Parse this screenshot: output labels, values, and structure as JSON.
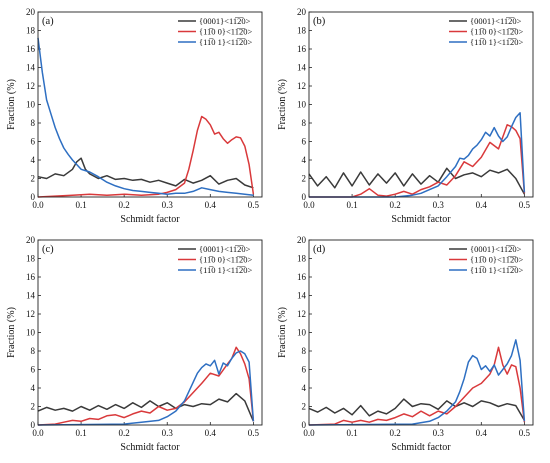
{
  "chart_data": [
    {
      "type": "line",
      "panel_label": "(a)",
      "xlabel": "Schmidt factor",
      "ylabel": "Fraction (%)",
      "xlim": [
        0,
        0.52
      ],
      "ylim": [
        0,
        20
      ],
      "xticks": [
        "0.0",
        "0.1",
        "0.2",
        "0.3",
        "0.4",
        "0.5"
      ],
      "yticks": [
        "0",
        "2",
        "4",
        "6",
        "8",
        "10",
        "12",
        "14",
        "16",
        "18",
        "20"
      ],
      "legend_position": "top-right",
      "series": [
        {
          "name": "{0001}<11̅2̅0>",
          "color": "#3a3a3a",
          "x": [
            0,
            0.02,
            0.04,
            0.06,
            0.08,
            0.09,
            0.1,
            0.11,
            0.12,
            0.14,
            0.16,
            0.18,
            0.2,
            0.22,
            0.24,
            0.26,
            0.28,
            0.3,
            0.32,
            0.34,
            0.36,
            0.38,
            0.4,
            0.42,
            0.44,
            0.46,
            0.48,
            0.5
          ],
          "y": [
            2.2,
            2.0,
            2.5,
            2.3,
            3.0,
            3.8,
            4.2,
            3.0,
            2.5,
            2.0,
            2.3,
            1.9,
            2.0,
            1.8,
            1.9,
            1.6,
            1.8,
            1.5,
            1.2,
            1.9,
            1.5,
            1.8,
            2.3,
            1.4,
            1.8,
            2.0,
            1.3,
            1.0
          ]
        },
        {
          "name": "{11̅0 0}<11̅2̅0>",
          "color": "#d9393b",
          "x": [
            0,
            0.04,
            0.08,
            0.12,
            0.16,
            0.2,
            0.24,
            0.28,
            0.3,
            0.32,
            0.34,
            0.35,
            0.36,
            0.37,
            0.38,
            0.39,
            0.4,
            0.41,
            0.42,
            0.43,
            0.44,
            0.45,
            0.46,
            0.47,
            0.48,
            0.49,
            0.5
          ],
          "y": [
            0,
            0.1,
            0.2,
            0.3,
            0.2,
            0.3,
            0.2,
            0.3,
            0.5,
            0.8,
            1.5,
            3.0,
            5.0,
            7.2,
            8.7,
            8.4,
            7.8,
            6.8,
            7.0,
            6.3,
            5.8,
            6.2,
            6.5,
            6.4,
            5.5,
            3.5,
            0.3
          ]
        },
        {
          "name": "{11̅0 1}<11̅2̅0>",
          "color": "#2e6fc2",
          "x": [
            0,
            0.01,
            0.02,
            0.03,
            0.04,
            0.05,
            0.06,
            0.07,
            0.08,
            0.1,
            0.12,
            0.14,
            0.16,
            0.18,
            0.2,
            0.22,
            0.24,
            0.26,
            0.28,
            0.3,
            0.32,
            0.34,
            0.36,
            0.38,
            0.4,
            0.42,
            0.44,
            0.46,
            0.48,
            0.5
          ],
          "y": [
            17.2,
            13.5,
            10.5,
            9.0,
            7.5,
            6.3,
            5.3,
            4.6,
            4.0,
            3.0,
            2.7,
            2.2,
            1.6,
            1.2,
            0.9,
            0.7,
            0.6,
            0.5,
            0.4,
            0.3,
            0.4,
            0.4,
            0.6,
            1.0,
            0.8,
            0.6,
            0.5,
            0.4,
            0.3,
            0.2
          ]
        }
      ]
    },
    {
      "type": "line",
      "panel_label": "(b)",
      "xlabel": "Schmidt factor",
      "ylabel": "Fraction (%)",
      "xlim": [
        0,
        0.52
      ],
      "ylim": [
        0,
        20
      ],
      "xticks": [
        "0.0",
        "0.1",
        "0.2",
        "0.3",
        "0.4",
        "0.5"
      ],
      "yticks": [
        "0",
        "2",
        "4",
        "6",
        "8",
        "10",
        "12",
        "14",
        "16",
        "18",
        "20"
      ],
      "legend_position": "top-right",
      "series": [
        {
          "name": "{0001}<11̅2̅0>",
          "color": "#3a3a3a",
          "x": [
            0,
            0.02,
            0.04,
            0.06,
            0.08,
            0.1,
            0.12,
            0.14,
            0.16,
            0.18,
            0.2,
            0.22,
            0.24,
            0.26,
            0.28,
            0.3,
            0.32,
            0.34,
            0.36,
            0.38,
            0.4,
            0.42,
            0.44,
            0.46,
            0.48,
            0.5
          ],
          "y": [
            2.5,
            1.2,
            2.2,
            1.0,
            2.6,
            1.2,
            2.7,
            1.3,
            2.5,
            1.5,
            2.6,
            1.2,
            2.5,
            1.4,
            2.3,
            1.6,
            3.1,
            2.0,
            2.4,
            2.6,
            2.2,
            2.9,
            2.6,
            3.0,
            2.0,
            0.3
          ]
        },
        {
          "name": "{11̅0 0}<11̅2̅0>",
          "color": "#d9393b",
          "x": [
            0,
            0.1,
            0.12,
            0.14,
            0.16,
            0.18,
            0.2,
            0.22,
            0.24,
            0.26,
            0.28,
            0.3,
            0.32,
            0.34,
            0.36,
            0.38,
            0.4,
            0.42,
            0.44,
            0.46,
            0.47,
            0.48,
            0.49,
            0.5
          ],
          "y": [
            0,
            0,
            0.3,
            0.9,
            0.2,
            0.1,
            0.3,
            0.6,
            0.3,
            0.8,
            1.1,
            1.6,
            1.3,
            2.3,
            3.8,
            3.3,
            4.3,
            5.9,
            5.2,
            7.8,
            7.6,
            7.2,
            6.3,
            0.4
          ]
        },
        {
          "name": "{11̅0 1}<11̅2̅0>",
          "color": "#2e6fc2",
          "x": [
            0,
            0.2,
            0.24,
            0.26,
            0.28,
            0.3,
            0.32,
            0.34,
            0.35,
            0.36,
            0.37,
            0.38,
            0.39,
            0.4,
            0.41,
            0.42,
            0.43,
            0.44,
            0.45,
            0.46,
            0.47,
            0.48,
            0.49,
            0.5
          ],
          "y": [
            0,
            0,
            0.2,
            0.4,
            0.8,
            1.2,
            2.2,
            3.3,
            4.2,
            4.1,
            4.5,
            5.2,
            5.6,
            6.2,
            7.0,
            6.6,
            7.5,
            6.6,
            6.0,
            6.5,
            7.6,
            8.6,
            9.1,
            0.5
          ]
        }
      ]
    },
    {
      "type": "line",
      "panel_label": "(c)",
      "xlabel": "Schmidt factor",
      "ylabel": "Fraction (%)",
      "xlim": [
        0,
        0.52
      ],
      "ylim": [
        0,
        20
      ],
      "xticks": [
        "0.0",
        "0.1",
        "0.2",
        "0.3",
        "0.4",
        "0.5"
      ],
      "yticks": [
        "0",
        "2",
        "4",
        "6",
        "8",
        "10",
        "12",
        "14",
        "16",
        "18",
        "20"
      ],
      "legend_position": "top-right",
      "series": [
        {
          "name": "{0001}<11̅2̅0>",
          "color": "#3a3a3a",
          "x": [
            0,
            0.02,
            0.04,
            0.06,
            0.08,
            0.1,
            0.12,
            0.14,
            0.16,
            0.18,
            0.2,
            0.22,
            0.24,
            0.26,
            0.28,
            0.3,
            0.32,
            0.34,
            0.36,
            0.38,
            0.4,
            0.42,
            0.44,
            0.46,
            0.48,
            0.5
          ],
          "y": [
            1.5,
            1.9,
            1.6,
            1.8,
            1.5,
            2.0,
            1.6,
            2.1,
            1.7,
            2.2,
            1.8,
            2.4,
            1.9,
            2.6,
            2.0,
            2.4,
            1.8,
            2.2,
            2.0,
            2.3,
            2.2,
            2.8,
            2.5,
            3.4,
            2.6,
            0.4
          ]
        },
        {
          "name": "{11̅0 0}<11̅2̅0>",
          "color": "#d9393b",
          "x": [
            0,
            0.04,
            0.06,
            0.08,
            0.1,
            0.12,
            0.14,
            0.16,
            0.18,
            0.2,
            0.22,
            0.24,
            0.26,
            0.28,
            0.3,
            0.32,
            0.34,
            0.36,
            0.38,
            0.4,
            0.42,
            0.44,
            0.45,
            0.46,
            0.47,
            0.48,
            0.49,
            0.5
          ],
          "y": [
            0,
            0.1,
            0.3,
            0.5,
            0.4,
            0.7,
            0.6,
            1.0,
            1.1,
            0.8,
            1.2,
            1.5,
            1.3,
            2.0,
            1.6,
            1.8,
            2.5,
            3.5,
            4.5,
            5.6,
            5.3,
            6.6,
            7.2,
            8.4,
            7.7,
            6.6,
            5.0,
            0.4
          ]
        },
        {
          "name": "{11̅0 1}<11̅2̅0>",
          "color": "#2e6fc2",
          "x": [
            0,
            0.2,
            0.24,
            0.28,
            0.3,
            0.32,
            0.34,
            0.35,
            0.36,
            0.37,
            0.38,
            0.39,
            0.4,
            0.41,
            0.42,
            0.43,
            0.44,
            0.45,
            0.46,
            0.47,
            0.48,
            0.49,
            0.5
          ],
          "y": [
            0,
            0.1,
            0.3,
            0.5,
            0.9,
            1.5,
            2.6,
            3.6,
            4.6,
            5.6,
            6.2,
            6.6,
            6.4,
            7.0,
            5.5,
            6.7,
            6.4,
            7.2,
            7.8,
            8.0,
            7.7,
            6.8,
            0.4
          ]
        }
      ]
    },
    {
      "type": "line",
      "panel_label": "(d)",
      "xlabel": "Schmidt factor",
      "ylabel": "Fraction (%)",
      "xlim": [
        0,
        0.52
      ],
      "ylim": [
        0,
        20
      ],
      "xticks": [
        "0.0",
        "0.1",
        "0.2",
        "0.3",
        "0.4",
        "0.5"
      ],
      "yticks": [
        "0",
        "2",
        "4",
        "6",
        "8",
        "10",
        "12",
        "14",
        "16",
        "18",
        "20"
      ],
      "legend_position": "top-right",
      "series": [
        {
          "name": "{0001}<11̅2̅0>",
          "color": "#3a3a3a",
          "x": [
            0,
            0.02,
            0.04,
            0.06,
            0.08,
            0.1,
            0.12,
            0.14,
            0.16,
            0.18,
            0.2,
            0.22,
            0.24,
            0.26,
            0.28,
            0.3,
            0.32,
            0.34,
            0.36,
            0.38,
            0.4,
            0.42,
            0.44,
            0.46,
            0.48,
            0.5
          ],
          "y": [
            1.8,
            1.4,
            1.9,
            1.3,
            1.8,
            1.1,
            2.1,
            1.0,
            1.5,
            1.2,
            1.8,
            2.8,
            2.0,
            2.3,
            2.2,
            1.7,
            2.6,
            2.0,
            2.4,
            2.0,
            2.6,
            2.4,
            2.0,
            2.3,
            2.1,
            0.5
          ]
        },
        {
          "name": "{11̅0 0}<11̅2̅0>",
          "color": "#d9393b",
          "x": [
            0,
            0.06,
            0.08,
            0.1,
            0.12,
            0.14,
            0.16,
            0.18,
            0.2,
            0.22,
            0.24,
            0.26,
            0.28,
            0.3,
            0.32,
            0.34,
            0.36,
            0.38,
            0.4,
            0.42,
            0.43,
            0.44,
            0.45,
            0.46,
            0.47,
            0.48,
            0.49,
            0.5
          ],
          "y": [
            0,
            0.1,
            0.5,
            0.3,
            0.5,
            0.3,
            0.6,
            0.5,
            0.8,
            1.2,
            0.9,
            1.5,
            1.0,
            1.5,
            1.2,
            2.0,
            3.0,
            4.0,
            4.5,
            5.5,
            6.5,
            8.4,
            6.5,
            5.5,
            6.5,
            6.3,
            4.0,
            0.3
          ]
        },
        {
          "name": "{11̅0 1}<11̅2̅0>",
          "color": "#2e6fc2",
          "x": [
            0,
            0.24,
            0.28,
            0.3,
            0.32,
            0.34,
            0.35,
            0.36,
            0.37,
            0.38,
            0.39,
            0.4,
            0.41,
            0.42,
            0.43,
            0.44,
            0.45,
            0.46,
            0.47,
            0.48,
            0.49,
            0.5
          ],
          "y": [
            0,
            0.1,
            0.4,
            0.8,
            1.5,
            2.5,
            3.6,
            5.0,
            6.8,
            7.5,
            7.2,
            6.0,
            6.4,
            5.8,
            6.5,
            5.4,
            6.0,
            6.6,
            7.5,
            9.2,
            7.0,
            0.4
          ]
        }
      ]
    }
  ]
}
